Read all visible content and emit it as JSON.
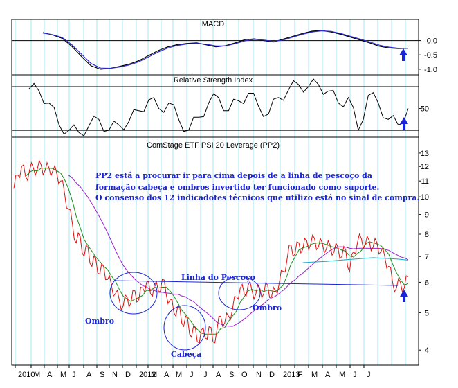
{
  "chart_data": [
    {
      "type": "line",
      "title": "MACD",
      "y_ticks": [
        0.0,
        -0.5,
        -1.0
      ],
      "y_tick_labels": [
        "0.0",
        "-0.5",
        "-1.0"
      ],
      "ylim": [
        -1.1,
        0.45
      ],
      "series": [
        {
          "values": [
            [
              0,
              0.28
            ],
            [
              3,
              0.2
            ],
            [
              6,
              0.08
            ],
            [
              9,
              -0.2
            ],
            [
              12,
              -0.55
            ],
            [
              15,
              -0.88
            ],
            [
              18,
              -1.0
            ],
            [
              21,
              -0.97
            ],
            [
              24,
              -0.9
            ],
            [
              27,
              -0.82
            ],
            [
              30,
              -0.7
            ],
            [
              33,
              -0.52
            ],
            [
              36,
              -0.35
            ],
            [
              39,
              -0.22
            ],
            [
              42,
              -0.14
            ],
            [
              45,
              -0.1
            ],
            [
              48,
              -0.08
            ],
            [
              51,
              -0.15
            ],
            [
              54,
              -0.22
            ],
            [
              57,
              -0.18
            ],
            [
              60,
              -0.08
            ],
            [
              63,
              0.03
            ],
            [
              66,
              0.06
            ],
            [
              69,
              0.0
            ],
            [
              72,
              -0.05
            ],
            [
              75,
              0.05
            ],
            [
              78,
              0.15
            ],
            [
              81,
              0.25
            ],
            [
              84,
              0.33
            ],
            [
              87,
              0.35
            ],
            [
              90,
              0.3
            ],
            [
              93,
              0.22
            ],
            [
              96,
              0.12
            ],
            [
              99,
              0.02
            ],
            [
              102,
              -0.08
            ],
            [
              105,
              -0.2
            ],
            [
              108,
              -0.26
            ],
            [
              111,
              -0.28
            ],
            [
              114,
              -0.27
            ]
          ]
        },
        {
          "values": [
            [
              0,
              0.26
            ],
            [
              3,
              0.21
            ],
            [
              6,
              0.11
            ],
            [
              9,
              -0.14
            ],
            [
              12,
              -0.47
            ],
            [
              15,
              -0.8
            ],
            [
              18,
              -0.96
            ],
            [
              21,
              -0.97
            ],
            [
              24,
              -0.92
            ],
            [
              27,
              -0.85
            ],
            [
              30,
              -0.74
            ],
            [
              33,
              -0.57
            ],
            [
              36,
              -0.4
            ],
            [
              39,
              -0.26
            ],
            [
              42,
              -0.17
            ],
            [
              45,
              -0.12
            ],
            [
              48,
              -0.1
            ],
            [
              51,
              -0.13
            ],
            [
              54,
              -0.19
            ],
            [
              57,
              -0.19
            ],
            [
              60,
              -0.11
            ],
            [
              63,
              -0.01
            ],
            [
              66,
              0.04
            ],
            [
              69,
              0.02
            ],
            [
              72,
              -0.03
            ],
            [
              75,
              0.02
            ],
            [
              78,
              0.12
            ],
            [
              81,
              0.22
            ],
            [
              84,
              0.3
            ],
            [
              87,
              0.34
            ],
            [
              90,
              0.32
            ],
            [
              93,
              0.25
            ],
            [
              96,
              0.15
            ],
            [
              99,
              0.05
            ],
            [
              102,
              -0.05
            ],
            [
              105,
              -0.16
            ],
            [
              108,
              -0.23
            ],
            [
              111,
              -0.27
            ],
            [
              114,
              -0.27
            ]
          ]
        }
      ]
    },
    {
      "type": "line",
      "title": "Relative Strength Index",
      "y_ticks": [
        50
      ],
      "y_tick_labels": [
        "50"
      ],
      "reference_lines": [
        70,
        30
      ],
      "ylim": [
        25,
        77
      ],
      "series": [
        {
          "values": [
            [
              0,
              68
            ],
            [
              3,
              66
            ],
            [
              6,
              55
            ],
            [
              9,
              35
            ],
            [
              12,
              30
            ],
            [
              15,
              28
            ],
            [
              18,
              34
            ],
            [
              21,
              40
            ],
            [
              24,
              30
            ],
            [
              27,
              35
            ],
            [
              30,
              38
            ],
            [
              33,
              48
            ],
            [
              36,
              58
            ],
            [
              39,
              50
            ],
            [
              42,
              55
            ],
            [
              45,
              40
            ],
            [
              48,
              30
            ],
            [
              51,
              42
            ],
            [
              54,
              55
            ],
            [
              57,
              60
            ],
            [
              60,
              48
            ],
            [
              63,
              57
            ],
            [
              66,
              64
            ],
            [
              69,
              52
            ],
            [
              72,
              45
            ],
            [
              75,
              60
            ],
            [
              78,
              67
            ],
            [
              81,
              72
            ],
            [
              84,
              70
            ],
            [
              87,
              72
            ],
            [
              90,
              66
            ],
            [
              93,
              55
            ],
            [
              96,
              60
            ],
            [
              99,
              30
            ],
            [
              102,
              62
            ],
            [
              105,
              55
            ],
            [
              108,
              40
            ],
            [
              111,
              35
            ],
            [
              114,
              50
            ]
          ]
        }
      ]
    },
    {
      "type": "line",
      "title": "ComStage ETF PSI 20 Leverage (PP2)",
      "x_tick_labels": [
        "2010",
        "M",
        "A",
        "M",
        "J",
        "A",
        "S",
        "N",
        "D",
        "2012",
        "M",
        "A",
        "M",
        "J",
        "J",
        "A",
        "S",
        "O",
        "N",
        "D",
        "2013",
        "F",
        "M",
        "A",
        "M",
        "J",
        "J"
      ],
      "y_scale": "log",
      "y_ticks": [
        4,
        5,
        6,
        7,
        8,
        9,
        10,
        11,
        12,
        13
      ],
      "y_tick_labels": [
        "4",
        "5",
        "6",
        "7",
        "8",
        "9",
        "10",
        "11",
        "12",
        "13"
      ],
      "ylim": [
        3.7,
        13.6
      ],
      "series": [
        {
          "values": [
            [
              0,
              10.5
            ],
            [
              1,
              11.4
            ],
            [
              2,
              12.0
            ],
            [
              3,
              11.3
            ],
            [
              4,
              11.7
            ],
            [
              5,
              11.9
            ],
            [
              6,
              11.8
            ],
            [
              7,
              12.1
            ],
            [
              8,
              11.7
            ],
            [
              9,
              11.9
            ],
            [
              10,
              11.7
            ],
            [
              11,
              11.5
            ],
            [
              12,
              11.0
            ],
            [
              13,
              10.2
            ],
            [
              14,
              9.3
            ],
            [
              15,
              8.5
            ],
            [
              16,
              7.6
            ],
            [
              17,
              7.9
            ],
            [
              18,
              7.0
            ],
            [
              19,
              7.4
            ],
            [
              20,
              6.6
            ],
            [
              21,
              6.9
            ],
            [
              22,
              6.3
            ],
            [
              23,
              6.6
            ],
            [
              24,
              6.1
            ],
            [
              25,
              5.9
            ],
            [
              26,
              5.6
            ],
            [
              27,
              5.4
            ],
            [
              28,
              5.2
            ],
            [
              29,
              5.5
            ],
            [
              30,
              5.3
            ],
            [
              31,
              5.7
            ],
            [
              32,
              5.4
            ],
            [
              33,
              5.8
            ],
            [
              34,
              6.0
            ],
            [
              35,
              5.6
            ],
            [
              36,
              5.9
            ],
            [
              37,
              5.7
            ],
            [
              38,
              6.1
            ],
            [
              39,
              5.6
            ],
            [
              40,
              5.4
            ],
            [
              41,
              5.0
            ],
            [
              42,
              5.2
            ],
            [
              43,
              4.7
            ],
            [
              44,
              4.9
            ],
            [
              45,
              4.4
            ],
            [
              46,
              4.6
            ],
            [
              47,
              4.2
            ],
            [
              48,
              4.5
            ],
            [
              49,
              4.3
            ],
            [
              50,
              4.6
            ],
            [
              51,
              4.2
            ],
            [
              52,
              4.5
            ],
            [
              53,
              4.9
            ],
            [
              54,
              4.7
            ],
            [
              55,
              4.9
            ],
            [
              56,
              5.1
            ],
            [
              57,
              5.5
            ],
            [
              58,
              5.8
            ],
            [
              59,
              5.6
            ],
            [
              60,
              5.9
            ],
            [
              61,
              5.7
            ],
            [
              62,
              5.6
            ],
            [
              63,
              5.8
            ],
            [
              64,
              5.6
            ],
            [
              65,
              5.9
            ],
            [
              66,
              5.5
            ],
            [
              67,
              5.7
            ],
            [
              68,
              6.0
            ],
            [
              69,
              6.4
            ],
            [
              70,
              6.9
            ],
            [
              71,
              7.5
            ],
            [
              72,
              7.1
            ],
            [
              73,
              7.6
            ],
            [
              74,
              7.3
            ],
            [
              75,
              7.7
            ],
            [
              76,
              7.5
            ],
            [
              77,
              7.8
            ],
            [
              78,
              7.4
            ],
            [
              79,
              7.6
            ],
            [
              80,
              7.3
            ],
            [
              81,
              7.5
            ],
            [
              82,
              7.2
            ],
            [
              83,
              7.4
            ],
            [
              84,
              7.0
            ],
            [
              85,
              7.3
            ],
            [
              86,
              6.4
            ],
            [
              87,
              7.2
            ],
            [
              88,
              7.6
            ],
            [
              89,
              7.8
            ],
            [
              90,
              7.5
            ],
            [
              91,
              7.7
            ],
            [
              92,
              7.4
            ],
            [
              93,
              7.6
            ],
            [
              94,
              7.2
            ],
            [
              95,
              7.0
            ],
            [
              96,
              6.6
            ],
            [
              97,
              6.0
            ],
            [
              98,
              5.8
            ],
            [
              99,
              6.0
            ],
            [
              100,
              5.8
            ],
            [
              101,
              6.2
            ]
          ]
        }
      ],
      "annotations": [
        "PP2 está a procurar ir para cima depois de a linha de pescoço da",
        "formação cabeça e ombros invertido ter funcionado como suporte.",
        "O consenso dos 12 indicadotes técnicos que utilizo está no sinal de compra.",
        "Linha do Pescoço",
        "Ombro",
        "Cabeça",
        "Ombro"
      ]
    }
  ]
}
